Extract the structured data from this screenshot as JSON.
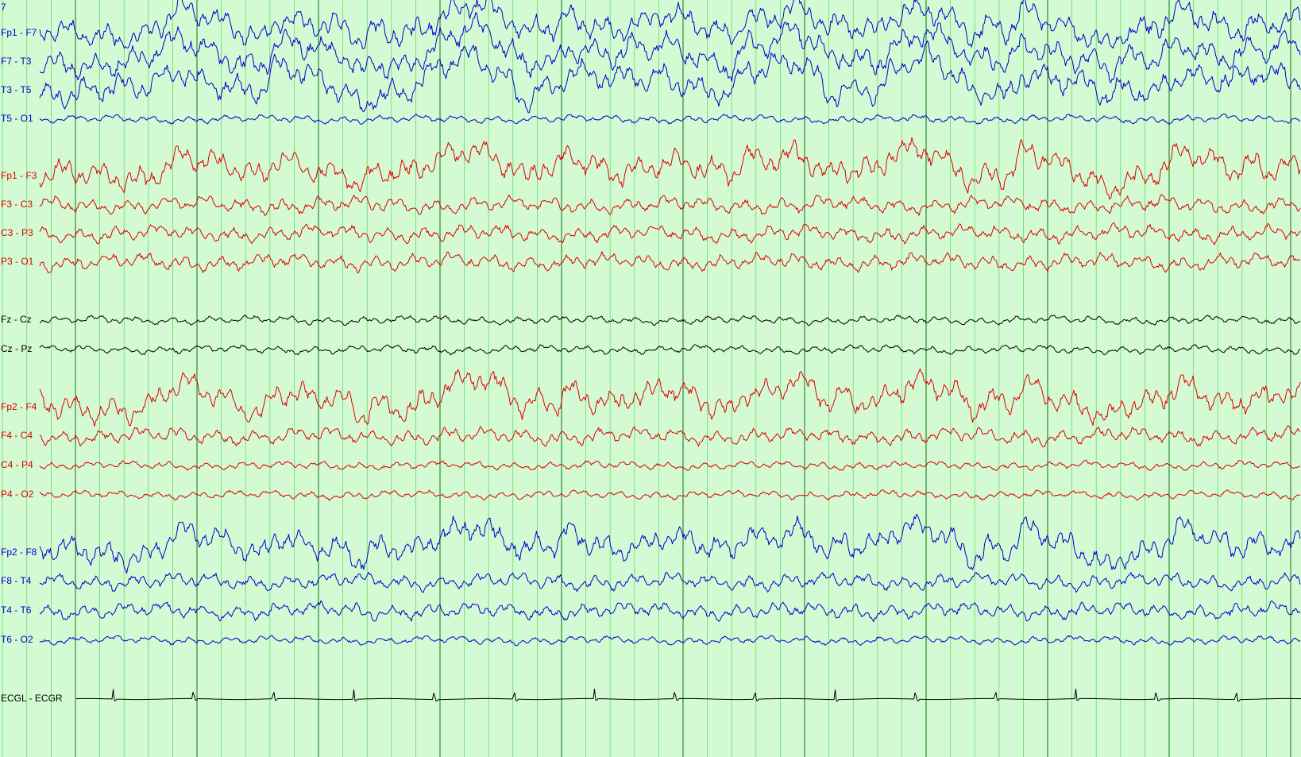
{
  "chart_data": {
    "type": "line",
    "page_number": "7",
    "grid": true,
    "colors": {
      "background": "#d4fad4",
      "minor_grid": "#66d966",
      "major_grid": "#2f8a2f",
      "left_temporal": "#0000cc",
      "left_parasagittal": "#dd0000",
      "midline": "#000000",
      "right_parasagittal": "#dd0000",
      "right_temporal": "#0000cc",
      "ecg": "#000000"
    },
    "channels": [
      {
        "label": "Fp1 - F7",
        "group": "left_temporal",
        "amplitude": "high",
        "slow_waves": true
      },
      {
        "label": "F7 - T3",
        "group": "left_temporal",
        "amplitude": "high",
        "slow_waves": true
      },
      {
        "label": "T3 - T5",
        "group": "left_temporal",
        "amplitude": "high",
        "slow_waves": true
      },
      {
        "label": "T5 - O1",
        "group": "left_temporal",
        "amplitude": "low",
        "slow_waves": false
      },
      {
        "label": "Fp1 - F3",
        "group": "left_parasagittal",
        "amplitude": "high",
        "slow_waves": true
      },
      {
        "label": "F3 - C3",
        "group": "left_parasagittal",
        "amplitude": "medium",
        "slow_waves": false
      },
      {
        "label": "C3 - P3",
        "group": "left_parasagittal",
        "amplitude": "medium",
        "slow_waves": false
      },
      {
        "label": "P3 - O1",
        "group": "left_parasagittal",
        "amplitude": "medium",
        "slow_waves": false
      },
      {
        "label": "Fz - Cz",
        "group": "midline",
        "amplitude": "low",
        "slow_waves": false
      },
      {
        "label": "Cz - Pz",
        "group": "midline",
        "amplitude": "low",
        "slow_waves": false
      },
      {
        "label": "Fp2 - F4",
        "group": "right_parasagittal",
        "amplitude": "high",
        "slow_waves": true
      },
      {
        "label": "F4 - C4",
        "group": "right_parasagittal",
        "amplitude": "medium",
        "slow_waves": false
      },
      {
        "label": "C4 - P4",
        "group": "right_parasagittal",
        "amplitude": "low",
        "slow_waves": false
      },
      {
        "label": "P4 - O2",
        "group": "right_parasagittal",
        "amplitude": "low",
        "slow_waves": false
      },
      {
        "label": "Fp2 - F8",
        "group": "right_temporal",
        "amplitude": "high",
        "slow_waves": true
      },
      {
        "label": "F8 - T4",
        "group": "right_temporal",
        "amplitude": "medium",
        "slow_waves": false
      },
      {
        "label": "T4 - T6",
        "group": "right_temporal",
        "amplitude": "medium",
        "slow_waves": false
      },
      {
        "label": "T6 - O2",
        "group": "right_temporal",
        "amplitude": "low",
        "slow_waves": false
      },
      {
        "label": "ECGL - ECGR",
        "group": "ecg",
        "amplitude": "low",
        "slow_waves": false
      }
    ]
  }
}
